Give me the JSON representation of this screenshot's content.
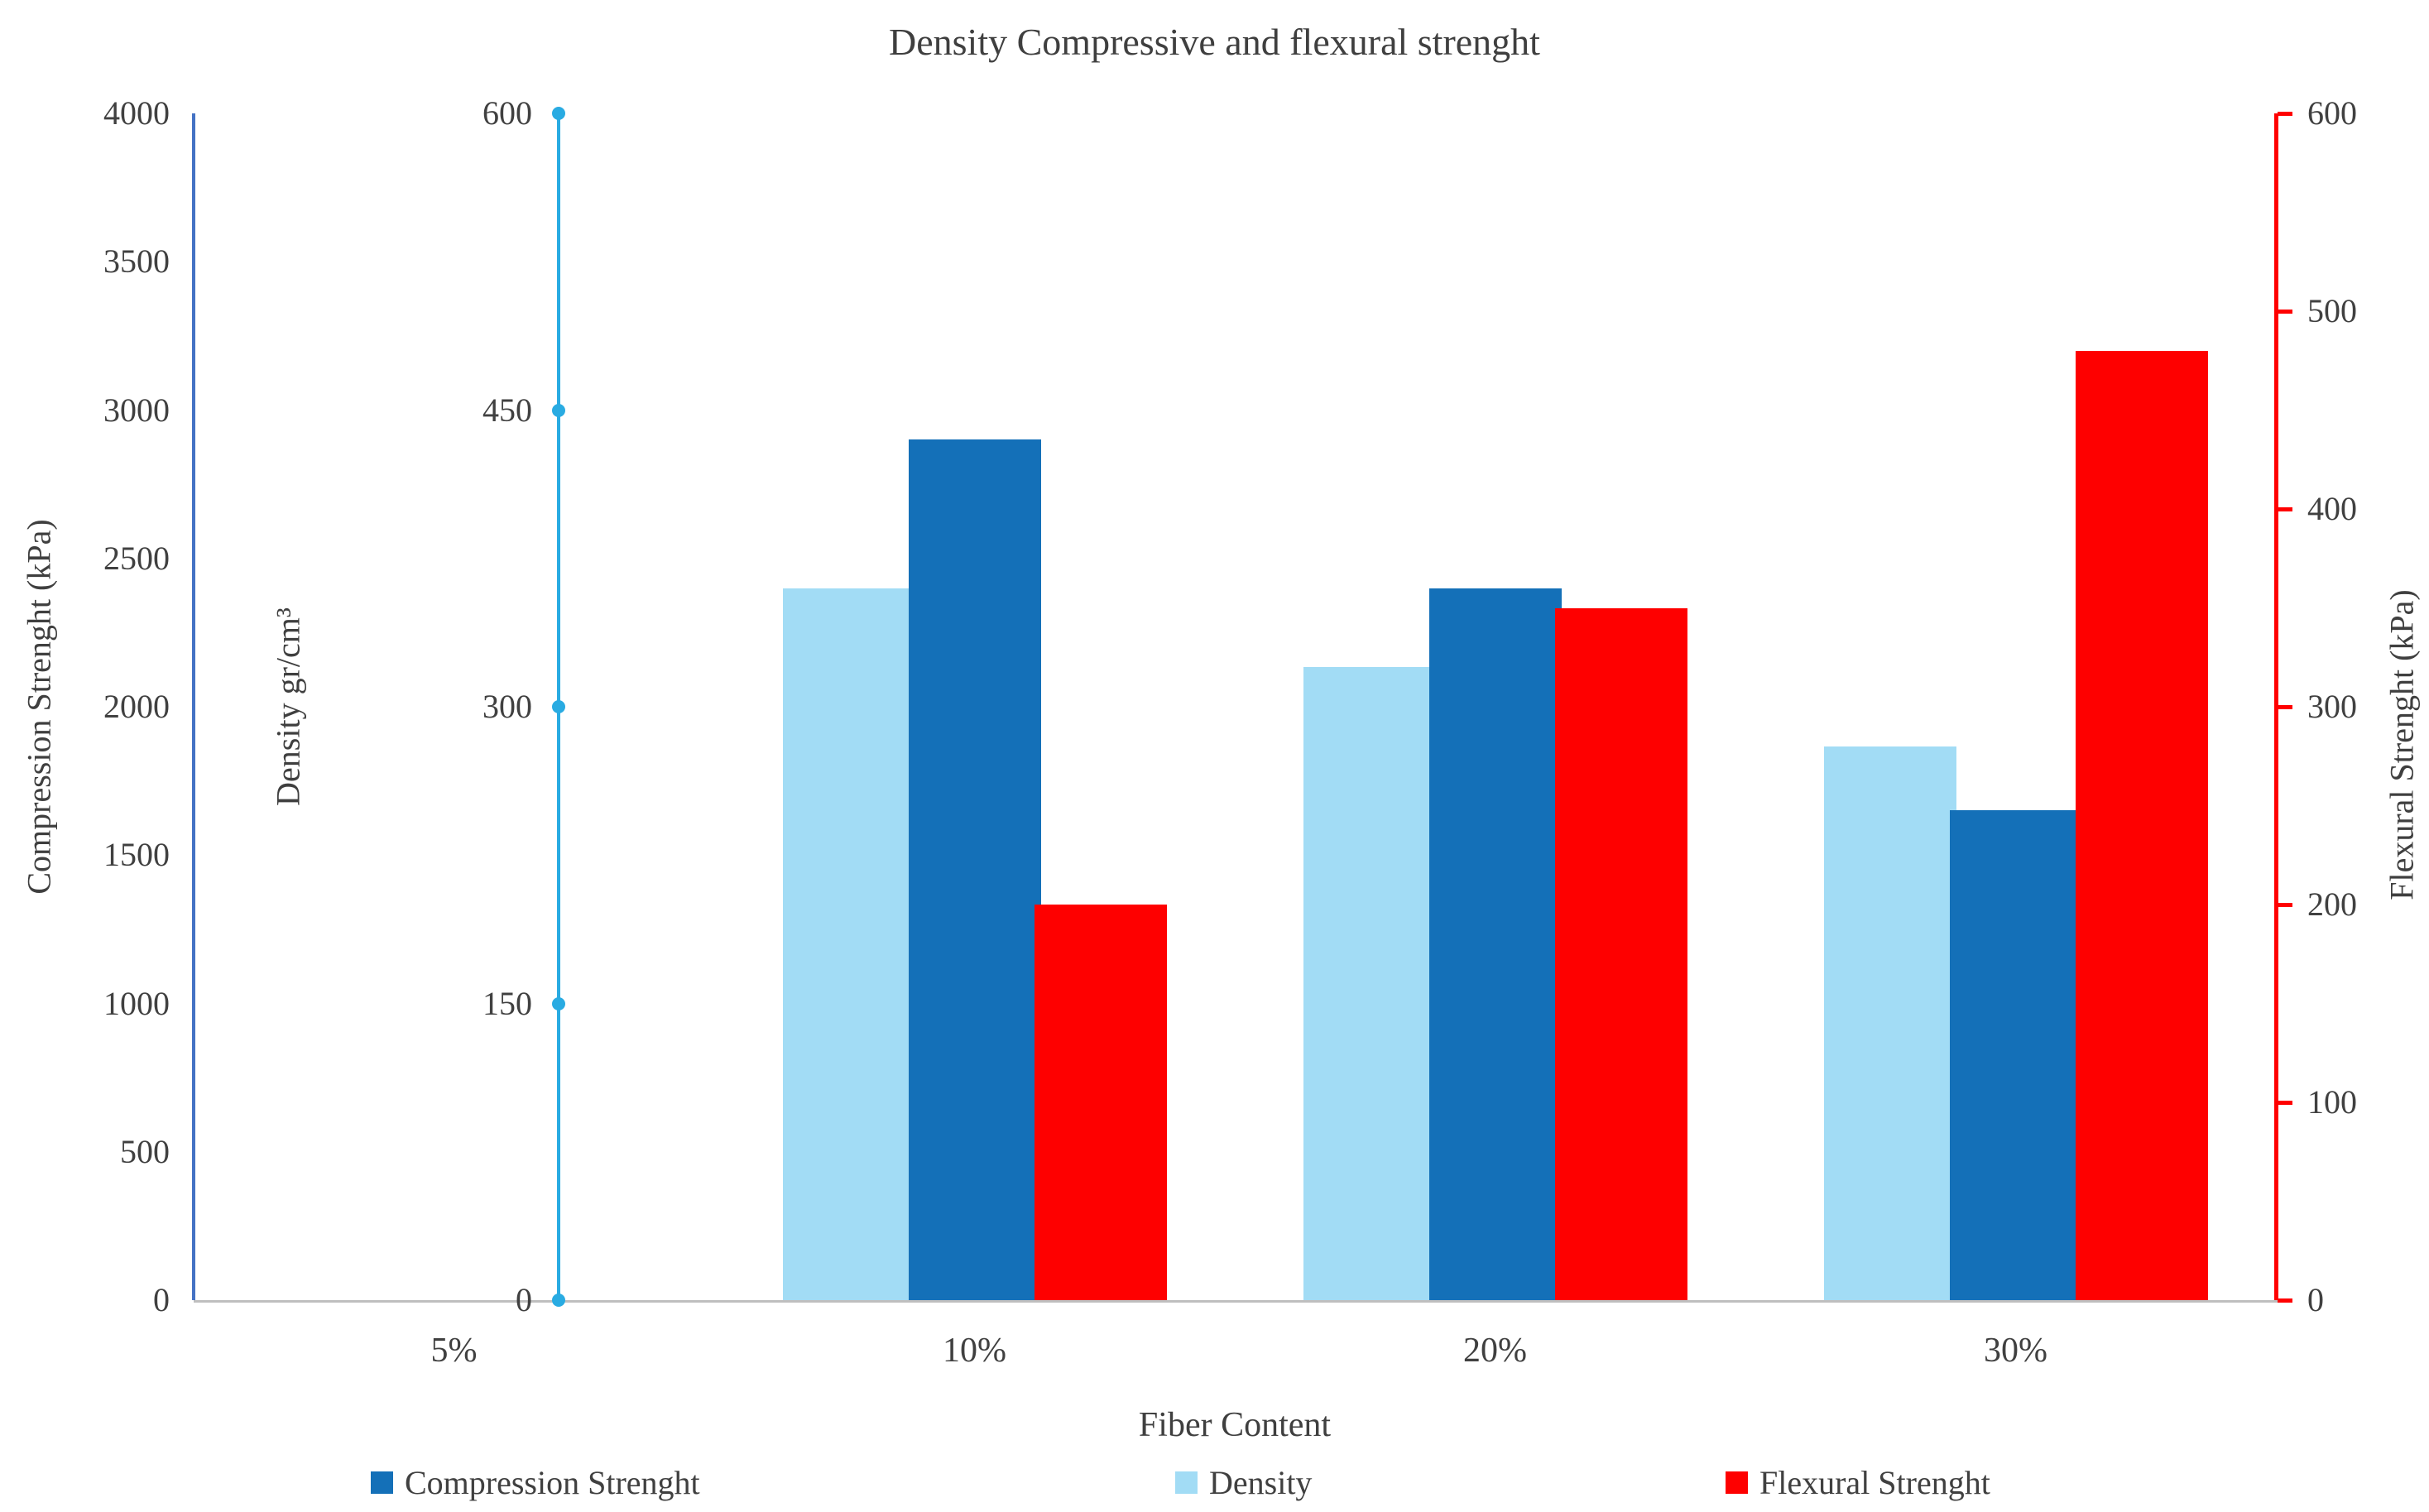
{
  "chart_data": {
    "type": "bar",
    "title": "Density Compressive and flexural strenght",
    "xlabel": "Fiber Content",
    "categories": [
      "5%",
      "10%",
      "20%",
      "30%"
    ],
    "series": [
      {
        "name": "Density",
        "axis": "density",
        "color": "#A2DCF5",
        "values": [
          0,
          360,
          320,
          280
        ]
      },
      {
        "name": "Compression Strenght",
        "axis": "compression",
        "color": "#1470B8",
        "values": [
          0,
          2900,
          2400,
          1650
        ]
      },
      {
        "name": "Flexural Strenght",
        "axis": "flexural",
        "color": "#FE0000",
        "values": [
          0,
          200,
          350,
          480
        ]
      }
    ],
    "axes": {
      "compression": {
        "label": "Compression  Strenght (kPa)",
        "min": 0,
        "max": 4000,
        "step": 500,
        "color": "#4472C4",
        "side": "outer-left"
      },
      "density": {
        "label": "Density gr/cm³",
        "min": 0,
        "max": 600,
        "step": 150,
        "color": "#29ABE2",
        "side": "inner-left"
      },
      "flexural": {
        "label": "Flexural  Strenght (kPa)",
        "min": 0,
        "max": 600,
        "step": 100,
        "color": "#FF0000",
        "side": "right"
      }
    },
    "legend": [
      "Compression Strenght",
      "Density",
      "Flexural Strenght"
    ],
    "layout_hints": {
      "grid": false,
      "legend_position": "bottom",
      "x_axis_color": "#BFBFBF"
    }
  }
}
